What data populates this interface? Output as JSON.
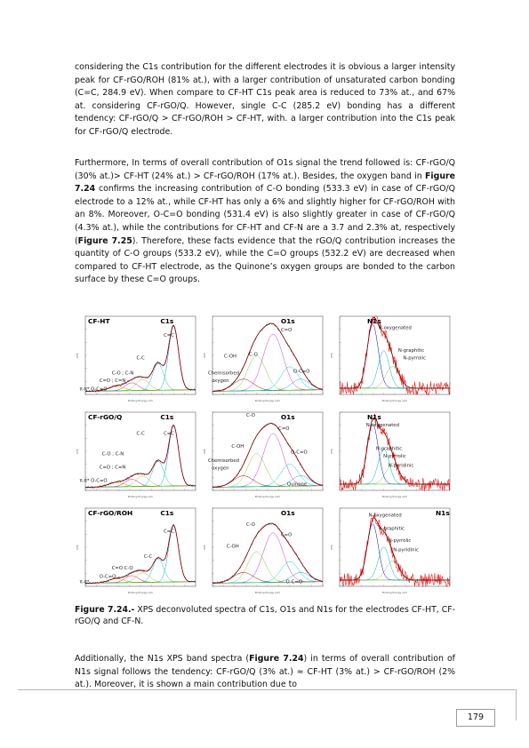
{
  "paragraphs": {
    "p1": "considering the C1s contribution for the different electrodes it is obvious a larger intensity peak for CF-rGO/ROH (81% at.), with a larger contribution of unsaturated carbon bonding (C=C, 284.9 eV). When compare to CF-HT C1s peak area is reduced to 73% at., and 67% at. considering CF-rGO/Q. However, single C-C (285.2 eV) bonding has a different tendency: CF-rGO/Q > CF-rGO/ROH > CF-HT, with. a larger contribution into the C1s peak for CF-rGO/Q electrode.",
    "p2a": "Furthermore, In terms of overall contribution of O1s signal the trend followed is: CF-rGO/Q (30% at.)> CF-HT (24% at.) > CF-rGO/ROH (17% at.). Besides, the oxygen band in ",
    "p2_ref1": "Figure 7.24",
    "p2b": " confirms the increasing contribution of C-O bonding (533.3 eV) in case of CF-rGO/Q electrode to a 12% at., while CF-HT has only a 6% and slightly higher for CF-rGO/ROH with an 8%. Moreover, O-C=O bonding (531.4 eV) is also slightly greater in case of CF-rGO/Q (4.3% at.), while the contributions for CF-HT and CF-N are a 3.7 and 2.3% at, respectively (",
    "p2_ref2": "Figure 7.25",
    "p2c": "). Therefore, these facts evidence that the rGO/Q contribution increases the quantity of C-O groups (533.2 eV), while the C=O groups (532.2 eV) are decreased when compared to CF-HT electrode, as the Quinone’s oxygen groups are bonded to the carbon surface by these C=O groups.",
    "p3a": "Additionally, the N1s XPS band spectra (",
    "p3_ref": "Figure 7.24",
    "p3b": ") in terms of overall contribution of N1s signal follows the tendency: CF-rGO/Q (3% at.) ≈ CF-HT (3% at.) > CF-rGO/ROH (2% at.). Moreover, it is shown a main contribution due to"
  },
  "caption": {
    "lead": "Figure 7.24.-",
    "text": " XPS deconvoluted spectra of C1s, O1s and N1s for the electrodes CF-HT, CF-rGO/Q and CF-N."
  },
  "page_number": "179",
  "figure": {
    "axis_x_label": "Binding Energy (eV)",
    "axis_y_label": "CPS",
    "rows": [
      {
        "sample": "CF-HT",
        "c1s": {
          "title": "C1s",
          "labels": [
            "C=C",
            "C-C",
            "C-O ; C-N",
            "C=O ; C=N",
            "π-π*",
            "O-C=O"
          ]
        },
        "o1s": {
          "title": "O1s",
          "labels": [
            "C=O",
            "C-OH",
            "C-O",
            "Chemisorbed",
            "oxygen",
            "O-C=O"
          ]
        },
        "n1s": {
          "title": "N1s",
          "labels": [
            "N-oxygenated",
            "N-graphitic",
            "N-pyrrolic"
          ]
        }
      },
      {
        "sample": "CF-rGO/Q",
        "c1s": {
          "title": "C1s",
          "labels": [
            "C=C",
            "C-C",
            "C-O ; C-N",
            "C=O ; C=N",
            "π-π*",
            "O-C=O"
          ]
        },
        "o1s": {
          "title": "O1s",
          "labels": [
            "C-O",
            "C=O",
            "C-OH",
            "Chemisorbed",
            "oxygen",
            "O-C=O",
            "Quinone"
          ]
        },
        "n1s": {
          "title": "N1s",
          "labels": [
            "N-oxygenated",
            "N-graphitic",
            "N-pyrrolic",
            "N-pyridinic"
          ]
        }
      },
      {
        "sample": "CF-rGO/ROH",
        "c1s": {
          "title": "C1s",
          "labels": [
            "C=C",
            "C-C",
            "C=O",
            "C-O",
            "O-C=O",
            "π-π*"
          ]
        },
        "o1s": {
          "title": "O1s",
          "labels": [
            "C-O",
            "C=O",
            "C-OH",
            "O-C=O"
          ]
        },
        "n1s": {
          "title": "N1s",
          "labels": [
            "N-oxygenated",
            "N-graphitic",
            "N-pyrrolic",
            "N-pyridinic"
          ]
        }
      }
    ]
  }
}
